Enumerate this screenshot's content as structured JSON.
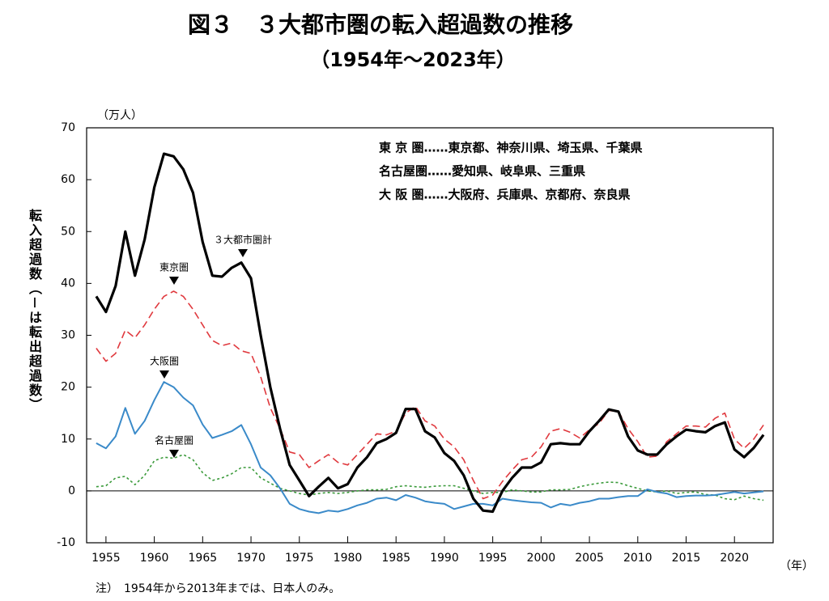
{
  "chart_data": {
    "type": "line",
    "title": "図３　３大都市圏の転入超過数の推移",
    "subtitle": "（1954年～2023年）",
    "y_unit": "（万人）",
    "y_label": "転入超過数（－は転出超過数）",
    "x_unit": "（年）",
    "note": "注）　1954年から2013年までは、日本人のみ。",
    "definitions": [
      "東 京 圏……東京都、神奈川県、埼玉県、千葉県",
      "名古屋圏……愛知県、岐阜県、三重県",
      "大 阪 圏……大阪府、兵庫県、京都府、奈良県"
    ],
    "x": [
      1954,
      1955,
      1956,
      1957,
      1958,
      1959,
      1960,
      1961,
      1962,
      1963,
      1964,
      1965,
      1966,
      1967,
      1968,
      1969,
      1970,
      1971,
      1972,
      1973,
      1974,
      1975,
      1976,
      1977,
      1978,
      1979,
      1980,
      1981,
      1982,
      1983,
      1984,
      1985,
      1986,
      1987,
      1988,
      1989,
      1990,
      1991,
      1992,
      1993,
      1994,
      1995,
      1996,
      1997,
      1998,
      1999,
      2000,
      2001,
      2002,
      2003,
      2004,
      2005,
      2006,
      2007,
      2008,
      2009,
      2010,
      2011,
      2012,
      2013,
      2014,
      2015,
      2016,
      2017,
      2018,
      2019,
      2020,
      2021,
      2022,
      2023
    ],
    "xlim": [
      1953,
      2024
    ],
    "xticks": [
      1955,
      1960,
      1965,
      1970,
      1975,
      1980,
      1985,
      1990,
      1995,
      2000,
      2005,
      2010,
      2015,
      2020
    ],
    "ylim": [
      -10,
      70
    ],
    "yticks": [
      -10,
      0,
      10,
      20,
      30,
      40,
      50,
      60,
      70
    ],
    "series": [
      {
        "name": "３大都市圏計",
        "color": "#000000",
        "values": [
          37.5,
          34.5,
          39.5,
          50,
          41.5,
          48.5,
          58.5,
          65,
          64.5,
          62,
          57.5,
          48,
          41.5,
          41.3,
          43,
          44,
          41,
          30,
          20,
          12,
          5,
          2,
          -1,
          0.8,
          2.5,
          0.5,
          1.3,
          4.5,
          6.5,
          9.2,
          10,
          11.2,
          15.8,
          15.8,
          11.5,
          10.3,
          7.3,
          5.8,
          3,
          -1.5,
          -3.8,
          -4,
          0,
          2.5,
          4.5,
          4.5,
          5.5,
          9,
          9.2,
          9,
          9,
          11.5,
          13.5,
          15.7,
          15.3,
          10.5,
          7.8,
          7,
          7,
          9,
          10.5,
          11.8,
          11.5,
          11.3,
          12.5,
          13.2,
          8,
          6.5,
          8.3,
          10.8
        ]
      },
      {
        "name": "東京圏",
        "color": "#e0393e",
        "values": [
          27.5,
          25,
          26.5,
          31,
          29.5,
          32,
          35,
          37.5,
          38.5,
          37.5,
          35,
          32,
          29,
          28,
          28.5,
          27,
          26.5,
          22,
          16,
          12,
          7.5,
          7,
          4.5,
          5.8,
          7,
          5.5,
          5,
          7,
          9,
          11,
          10.8,
          11.5,
          15,
          16.3,
          13.5,
          12.5,
          10,
          8.5,
          6,
          2,
          -1.5,
          -0.8,
          1.8,
          4,
          6,
          6.5,
          8.5,
          11.5,
          12,
          11.3,
          10.2,
          11.8,
          13,
          15.5,
          15.3,
          12,
          9.5,
          6.5,
          6.7,
          9.5,
          11,
          12.5,
          12.5,
          12.3,
          14,
          15,
          10,
          8.2,
          10,
          12.7
        ]
      },
      {
        "name": "大阪圏",
        "color": "#3a8ac9",
        "values": [
          9.2,
          8.2,
          10.5,
          16,
          11,
          13.5,
          17.5,
          21,
          20,
          18,
          16.5,
          12.8,
          10.2,
          10.8,
          11.5,
          12.7,
          9,
          4.5,
          3,
          0.5,
          -2.5,
          -3.5,
          -4,
          -4.3,
          -3.8,
          -4,
          -3.5,
          -2.8,
          -2.3,
          -1.5,
          -1.3,
          -1.8,
          -0.8,
          -1.3,
          -2,
          -2.3,
          -2.5,
          -3.5,
          -3,
          -2.5,
          -2.5,
          -2.8,
          -1.5,
          -1.8,
          -2,
          -2.2,
          -2.3,
          -3.2,
          -2.5,
          -2.8,
          -2.3,
          -2,
          -1.5,
          -1.5,
          -1.2,
          -1,
          -1,
          0.3,
          -0.2,
          -0.5,
          -1.2,
          -1,
          -0.9,
          -0.9,
          -0.8,
          -0.5,
          -0.2,
          -0.5,
          -0.3,
          -0.1
        ]
      },
      {
        "name": "名古屋圏",
        "color": "#3a9a3a",
        "values": [
          0.8,
          1,
          2.5,
          2.8,
          1.2,
          3,
          5.8,
          6.5,
          6.3,
          7,
          6,
          3.5,
          2,
          2.5,
          3.3,
          4.5,
          4.5,
          2.5,
          1.5,
          0.5,
          0,
          -0.5,
          -0.8,
          -0.5,
          -0.3,
          -0.5,
          -0.3,
          0,
          0.2,
          0.2,
          0.3,
          0.8,
          1,
          0.8,
          0.7,
          0.9,
          1,
          1,
          0.5,
          0,
          -0.5,
          -0.3,
          -0.3,
          0.2,
          0,
          -0.2,
          -0.2,
          0.2,
          0.2,
          0.3,
          0.8,
          1.2,
          1.5,
          1.7,
          1.6,
          1,
          0.5,
          0,
          -0.2,
          0,
          -0.5,
          -0.3,
          -0.2,
          -0.7,
          -0.8,
          -1.5,
          -1.7,
          -1,
          -1.5,
          -1.8
        ]
      }
    ]
  }
}
